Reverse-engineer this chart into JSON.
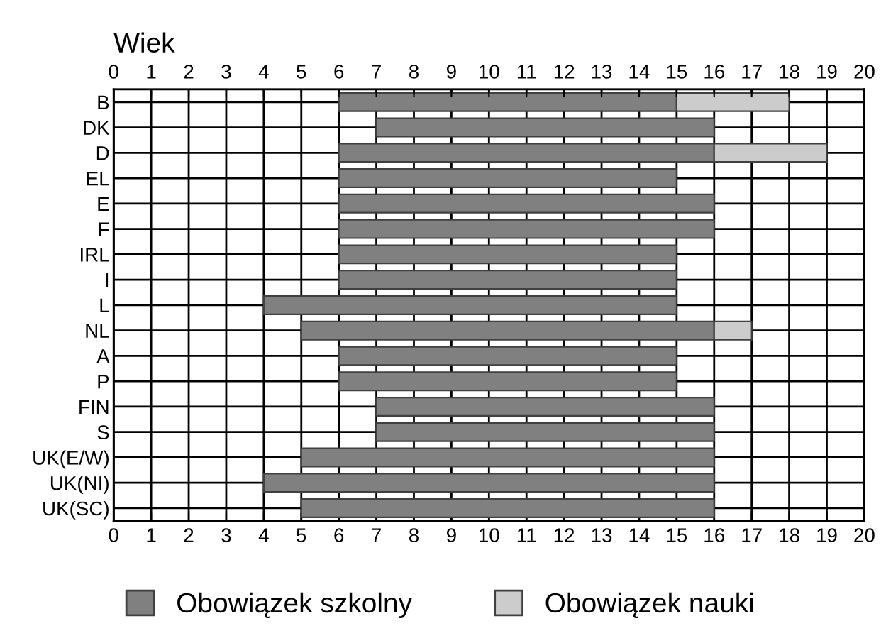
{
  "chart_data": {
    "type": "bar",
    "orientation": "horizontal",
    "xlabel": "Wiek",
    "categories": [
      "B",
      "DK",
      "D",
      "EL",
      "E",
      "F",
      "IRL",
      "I",
      "L",
      "NL",
      "A",
      "P",
      "FIN",
      "S",
      "UK(E/W)",
      "UK(NI)",
      "UK(SC)"
    ],
    "series": [
      {
        "name": "Obowiązek szkolny",
        "color": "#808080",
        "base": [
          6,
          7,
          6,
          6,
          6,
          6,
          6,
          6,
          4,
          5,
          6,
          6,
          7,
          7,
          5,
          4,
          5
        ],
        "values": [
          9,
          9,
          10,
          9,
          10,
          10,
          9,
          9,
          11,
          11,
          9,
          9,
          9,
          9,
          11,
          12,
          11
        ]
      },
      {
        "name": "Obowiązek nauki",
        "color": "#cccccc",
        "base": [
          15,
          null,
          16,
          null,
          null,
          null,
          null,
          null,
          null,
          16,
          null,
          null,
          null,
          null,
          null,
          null,
          null
        ],
        "values": [
          3,
          null,
          3,
          null,
          null,
          null,
          null,
          null,
          null,
          1,
          null,
          null,
          null,
          null,
          null,
          null,
          null
        ]
      }
    ],
    "xlim": [
      0,
      20
    ],
    "xticks": [
      0,
      1,
      2,
      3,
      4,
      5,
      6,
      7,
      8,
      9,
      10,
      11,
      12,
      13,
      14,
      15,
      16,
      17,
      18,
      19,
      20
    ],
    "x2lim": [
      0,
      20
    ],
    "x2ticks": [
      0,
      1,
      2,
      3,
      4,
      5,
      6,
      7,
      8,
      9,
      10,
      11,
      12,
      13,
      14,
      15,
      16,
      17,
      18,
      19,
      20
    ],
    "grid": true,
    "legend": "bottom"
  }
}
